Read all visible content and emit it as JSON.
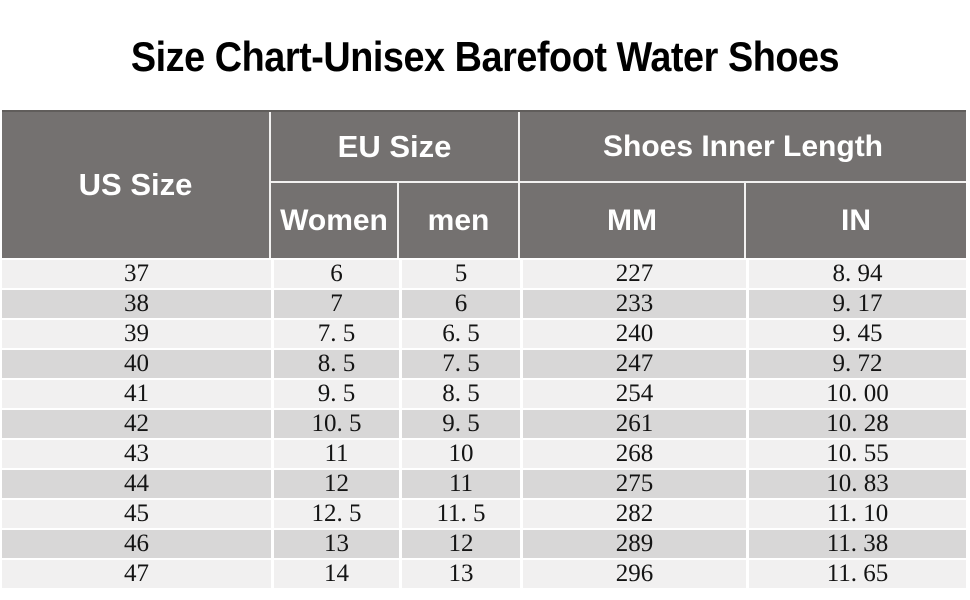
{
  "title": "Size Chart-Unisex Barefoot Water Shoes",
  "table": {
    "header": {
      "us_size": "US Size",
      "eu_size": "EU Size",
      "women": "Women",
      "men": "men",
      "inner_length": "Shoes Inner Length",
      "mm": "MM",
      "in": "IN"
    }
  },
  "colors": {
    "header_bg": "#747170",
    "header_text": "#ffffff",
    "row_light": "#f1f0f0",
    "row_dark": "#d8d7d7",
    "divider": "#ffffff",
    "body_text": "#141414",
    "title_text": "#000000"
  },
  "chart_data": {
    "type": "table",
    "title": "Size Chart-Unisex Barefoot Water Shoes",
    "columns": [
      "US Size",
      "EU Size Women",
      "EU Size men",
      "Shoes Inner Length MM",
      "Shoes Inner Length IN"
    ],
    "rows": [
      [
        "37",
        "6",
        "5",
        "227",
        "8. 94"
      ],
      [
        "38",
        "7",
        "6",
        "233",
        "9. 17"
      ],
      [
        "39",
        "7. 5",
        "6. 5",
        "240",
        "9. 45"
      ],
      [
        "40",
        "8. 5",
        "7. 5",
        "247",
        "9. 72"
      ],
      [
        "41",
        "9. 5",
        "8. 5",
        "254",
        "10. 00"
      ],
      [
        "42",
        "10. 5",
        "9. 5",
        "261",
        "10. 28"
      ],
      [
        "43",
        "11",
        "10",
        "268",
        "10. 55"
      ],
      [
        "44",
        "12",
        "11",
        "275",
        "10. 83"
      ],
      [
        "45",
        "12. 5",
        "11. 5",
        "282",
        "11. 10"
      ],
      [
        "46",
        "13",
        "12",
        "289",
        "11. 38"
      ],
      [
        "47",
        "14",
        "13",
        "296",
        "11. 65"
      ]
    ]
  }
}
